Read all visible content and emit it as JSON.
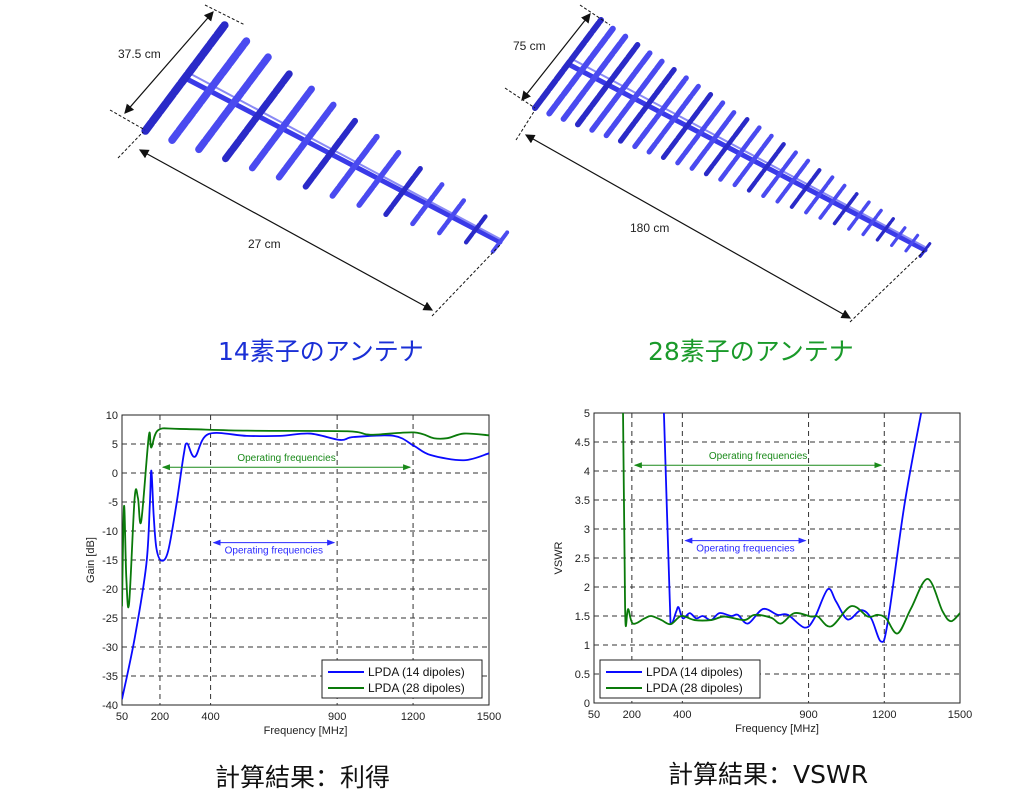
{
  "antennas": [
    {
      "caption": "14素子のアンテナ",
      "width_label": "37.5 cm",
      "length_label": "27 cm",
      "elements": 14,
      "color": "#1a2fd6"
    },
    {
      "caption": "28素子のアンテナ",
      "width_label": "75 cm",
      "length_label": "180 cm",
      "elements": 28,
      "color": "#1a9a2a"
    }
  ],
  "captions": {
    "gain": "計算結果：利得",
    "vswr": "計算結果：VSWR"
  },
  "colors": {
    "blue": "#0a0aff",
    "green": "#0a7a0a",
    "element": "#3a3ae8"
  },
  "chart_data": [
    {
      "type": "line",
      "title": "",
      "xlabel": "Frequency [MHz]",
      "ylabel": "Gain [dB]",
      "xlim": [
        50,
        1500
      ],
      "ylim": [
        -40,
        10
      ],
      "xticks": [
        50,
        200,
        400,
        900,
        1200,
        1500
      ],
      "yticks": [
        -40,
        -35,
        -30,
        -25,
        -20,
        -15,
        -10,
        -5,
        0,
        5,
        10
      ],
      "grid": true,
      "legend": "bottom-right",
      "annotations": [
        {
          "text": "Operating frequencies",
          "from": 200,
          "to": 1200,
          "y": 1,
          "series": 1
        },
        {
          "text": "Operating frequencies",
          "from": 400,
          "to": 900,
          "y": -12,
          "series": 0
        }
      ],
      "series": [
        {
          "name": "LPDA (14 dipoles)",
          "x": [
            50,
            100,
            146,
            160,
            166,
            175,
            186,
            206,
            232,
            265,
            294,
            307,
            338,
            391,
            543,
            675,
            793,
            912,
            965,
            1124,
            1203,
            1269,
            1401,
            1500
          ],
          "y": [
            -39,
            -28.5,
            -15.8,
            -5.4,
            0.4,
            -7.2,
            -13,
            -15.1,
            -13.5,
            -5.4,
            3.2,
            5.1,
            2.8,
            6.7,
            6.4,
            6.4,
            6.8,
            5.7,
            6.2,
            6.4,
            4.7,
            3.1,
            2.2,
            3.4
          ]
        },
        {
          "name": "LPDA (28 dipoles)",
          "x": [
            50,
            58,
            67,
            78,
            100,
            113,
            126,
            156,
            166,
            193,
            278,
            543,
            939,
            1031,
            1203,
            1282,
            1335,
            1401,
            1500
          ],
          "y": [
            -23,
            -5.7,
            -18,
            -22.5,
            -4.3,
            -4.3,
            -8.3,
            6.4,
            4.4,
            7.4,
            7.6,
            7.3,
            7.2,
            6.6,
            7.0,
            6.0,
            6.0,
            6.8,
            6.5
          ]
        }
      ]
    },
    {
      "type": "line",
      "title": "",
      "xlabel": "Frequency [MHz]",
      "ylabel": "VSWR",
      "xlim": [
        50,
        1500
      ],
      "ylim": [
        0,
        5
      ],
      "xticks": [
        50,
        200,
        400,
        900,
        1200,
        1500
      ],
      "yticks": [
        0,
        0.5,
        1,
        1.5,
        2,
        2.5,
        3,
        3.5,
        4,
        4.5,
        5
      ],
      "grid": true,
      "legend": "bottom-left",
      "annotations": [
        {
          "text": "Operating frequencies",
          "from": 200,
          "to": 1200,
          "y": 4.1,
          "series": 1
        },
        {
          "text": "Operating frequencies",
          "from": 400,
          "to": 900,
          "y": 2.8,
          "series": 0
        }
      ],
      "series": [
        {
          "name": "LPDA (14 dipoles)",
          "x": [
            327,
            350,
            356,
            376,
            385,
            402,
            429,
            455,
            481,
            514,
            547,
            594,
            620,
            660,
            719,
            778,
            818,
            884,
            923,
            976,
            1009,
            1055,
            1108,
            1148,
            1187,
            1214,
            1280,
            1346
          ],
          "y": [
            5,
            1.8,
            1.37,
            1.58,
            1.65,
            1.46,
            1.55,
            1.46,
            1.5,
            1.43,
            1.55,
            1.5,
            1.52,
            1.37,
            1.62,
            1.52,
            1.52,
            1.3,
            1.46,
            1.96,
            1.75,
            1.44,
            1.6,
            1.46,
            1.06,
            1.4,
            3.42,
            5
          ]
        },
        {
          "name": "LPDA (28 dipoles)",
          "x": [
            165,
            171,
            175,
            185,
            204,
            251,
            277,
            317,
            354,
            396,
            448,
            514,
            567,
            646,
            686,
            752,
            791,
            844,
            910,
            937,
            989,
            1069,
            1135,
            1174,
            1207,
            1253,
            1306,
            1372,
            1431,
            1464,
            1500
          ],
          "y": [
            5,
            2.56,
            1.36,
            1.62,
            1.37,
            1.46,
            1.5,
            1.43,
            1.36,
            1.5,
            1.43,
            1.43,
            1.49,
            1.43,
            1.52,
            1.47,
            1.37,
            1.55,
            1.49,
            1.49,
            1.32,
            1.67,
            1.49,
            1.52,
            1.46,
            1.2,
            1.63,
            2.14,
            1.58,
            1.41,
            1.55
          ]
        }
      ]
    }
  ]
}
